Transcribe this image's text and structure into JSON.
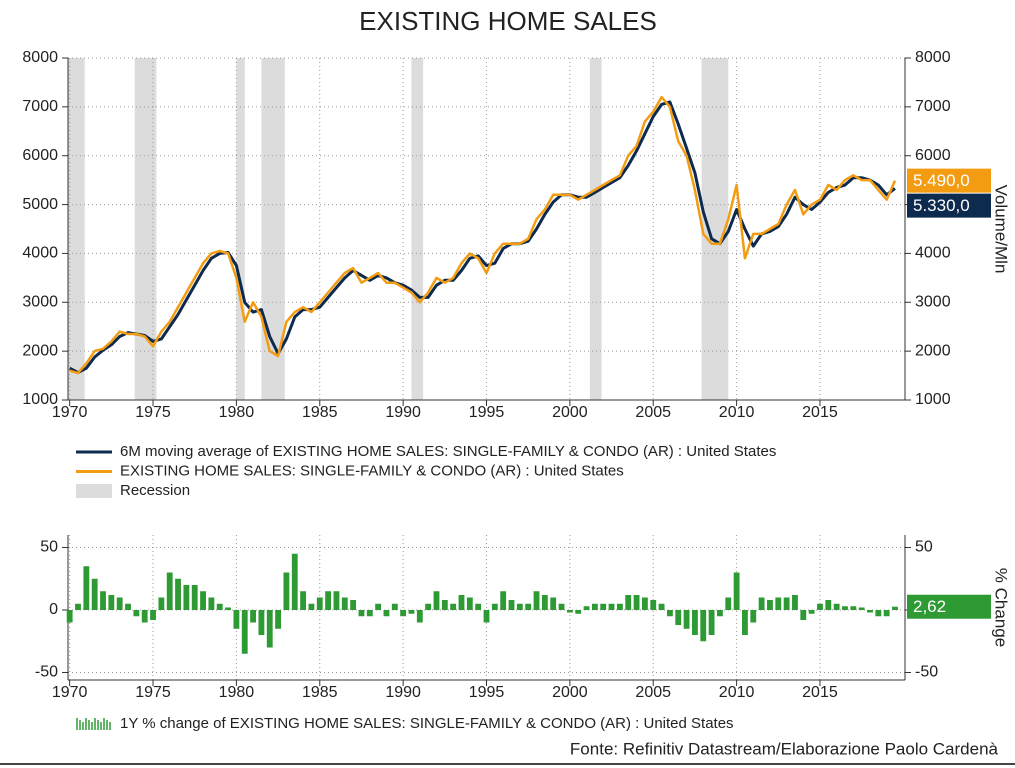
{
  "title": "EXISTING HOME SALES",
  "source": "Fonte: Refinitiv Datastream/Elaborazione Paolo Cardenà",
  "chart_data": [
    {
      "type": "line",
      "x": [
        1970,
        1970.5,
        1971,
        1971.5,
        1972,
        1972.5,
        1973,
        1973.5,
        1974,
        1974.5,
        1975,
        1975.5,
        1976,
        1976.5,
        1977,
        1977.5,
        1978,
        1978.5,
        1979,
        1979.5,
        1980,
        1980.5,
        1981,
        1981.5,
        1982,
        1982.5,
        1983,
        1983.5,
        1984,
        1984.5,
        1985,
        1985.5,
        1986,
        1986.5,
        1987,
        1987.5,
        1988,
        1988.5,
        1989,
        1989.5,
        1990,
        1990.5,
        1991,
        1991.5,
        1992,
        1992.5,
        1993,
        1993.5,
        1994,
        1994.5,
        1995,
        1995.5,
        1996,
        1996.5,
        1997,
        1997.5,
        1998,
        1998.5,
        1999,
        1999.5,
        2000,
        2000.5,
        2001,
        2001.5,
        2002,
        2002.5,
        2003,
        2003.5,
        2004,
        2004.5,
        2005,
        2005.5,
        2006,
        2006.5,
        2007,
        2007.5,
        2008,
        2008.5,
        2009,
        2009.5,
        2010,
        2010.5,
        2011,
        2011.5,
        2012,
        2012.5,
        2013,
        2013.5,
        2014,
        2014.5,
        2015,
        2015.5,
        2016,
        2016.5,
        2017,
        2017.5,
        2018,
        2018.5,
        2019,
        2019.5
      ],
      "series": [
        {
          "name": "6M moving average of EXISTING HOME SALES: SINGLE-FAMILY & CONDO (AR) : United States",
          "color": "#0d2a4f",
          "end_label": "5.330,0",
          "values": [
            1650,
            1560,
            1650,
            1880,
            2020,
            2130,
            2300,
            2380,
            2350,
            2320,
            2200,
            2250,
            2500,
            2750,
            3050,
            3350,
            3650,
            3900,
            4000,
            4020,
            3750,
            3000,
            2800,
            2850,
            2300,
            1950,
            2250,
            2700,
            2850,
            2850,
            2900,
            3100,
            3300,
            3500,
            3650,
            3550,
            3450,
            3550,
            3500,
            3400,
            3350,
            3250,
            3100,
            3100,
            3350,
            3450,
            3450,
            3650,
            3900,
            3950,
            3750,
            3800,
            4100,
            4200,
            4200,
            4250,
            4500,
            4800,
            5050,
            5200,
            5200,
            5150,
            5150,
            5250,
            5350,
            5450,
            5550,
            5800,
            6100,
            6450,
            6800,
            7050,
            7100,
            6650,
            6150,
            5650,
            4850,
            4300,
            4200,
            4450,
            4900,
            4500,
            4150,
            4400,
            4450,
            4550,
            4800,
            5150,
            5000,
            4900,
            5050,
            5250,
            5350,
            5400,
            5550,
            5550,
            5500,
            5400,
            5200,
            5330
          ]
        },
        {
          "name": "EXISTING HOME SALES: SINGLE-FAMILY & CONDO (AR) : United States",
          "color": "#f39c12",
          "end_label": "5.490,0",
          "values": [
            1600,
            1550,
            1750,
            2000,
            2050,
            2200,
            2400,
            2350,
            2350,
            2300,
            2100,
            2400,
            2600,
            2900,
            3200,
            3500,
            3800,
            4000,
            4050,
            4000,
            3500,
            2600,
            3000,
            2700,
            2000,
            1900,
            2600,
            2800,
            2900,
            2800,
            3000,
            3200,
            3400,
            3600,
            3700,
            3400,
            3500,
            3600,
            3400,
            3400,
            3300,
            3200,
            3000,
            3200,
            3500,
            3400,
            3500,
            3800,
            4000,
            3900,
            3600,
            4000,
            4200,
            4200,
            4200,
            4300,
            4700,
            4900,
            5200,
            5200,
            5200,
            5100,
            5200,
            5300,
            5400,
            5500,
            5600,
            6000,
            6200,
            6700,
            6900,
            7200,
            7000,
            6300,
            6000,
            5300,
            4400,
            4200,
            4200,
            4700,
            5400,
            3900,
            4400,
            4400,
            4500,
            4600,
            5000,
            5300,
            4800,
            5000,
            5100,
            5400,
            5300,
            5500,
            5600,
            5500,
            5500,
            5300,
            5100,
            5490
          ]
        }
      ],
      "recessions": [
        [
          1969.9,
          1970.9
        ],
        [
          1973.9,
          1975.2
        ],
        [
          1980.0,
          1980.5
        ],
        [
          1981.5,
          1982.9
        ],
        [
          1990.5,
          1991.2
        ],
        [
          2001.2,
          2001.9
        ],
        [
          2007.9,
          2009.5
        ]
      ],
      "recession_label": "Recession",
      "recession_color": "#dcdcdc",
      "xlim": [
        1969.9,
        2020.1
      ],
      "xticks": [
        1970,
        1975,
        1980,
        1985,
        1990,
        1995,
        2000,
        2005,
        2010,
        2015
      ],
      "ylim": [
        1000,
        8000
      ],
      "yticks": [
        1000,
        2000,
        3000,
        4000,
        5000,
        6000,
        7000,
        8000
      ],
      "y2lim": [
        1000,
        8000
      ],
      "y2ticks": [
        1000,
        2000,
        3000,
        4000,
        5000,
        6000,
        7000,
        8000
      ],
      "y2label": "Volume/Mln",
      "grid": true
    },
    {
      "type": "bar",
      "x": [
        1970,
        1970.5,
        1971,
        1971.5,
        1972,
        1972.5,
        1973,
        1973.5,
        1974,
        1974.5,
        1975,
        1975.5,
        1976,
        1976.5,
        1977,
        1977.5,
        1978,
        1978.5,
        1979,
        1979.5,
        1980,
        1980.5,
        1981,
        1981.5,
        1982,
        1982.5,
        1983,
        1983.5,
        1984,
        1984.5,
        1985,
        1985.5,
        1986,
        1986.5,
        1987,
        1987.5,
        1988,
        1988.5,
        1989,
        1989.5,
        1990,
        1990.5,
        1991,
        1991.5,
        1992,
        1992.5,
        1993,
        1993.5,
        1994,
        1994.5,
        1995,
        1995.5,
        1996,
        1996.5,
        1997,
        1997.5,
        1998,
        1998.5,
        1999,
        1999.5,
        2000,
        2000.5,
        2001,
        2001.5,
        2002,
        2002.5,
        2003,
        2003.5,
        2004,
        2004.5,
        2005,
        2005.5,
        2006,
        2006.5,
        2007,
        2007.5,
        2008,
        2008.5,
        2009,
        2009.5,
        2010,
        2010.5,
        2011,
        2011.5,
        2012,
        2012.5,
        2013,
        2013.5,
        2014,
        2014.5,
        2015,
        2015.5,
        2016,
        2016.5,
        2017,
        2017.5,
        2018,
        2018.5,
        2019,
        2019.5
      ],
      "series": [
        {
          "name": "1Y % change of EXISTING HOME SALES: SINGLE-FAMILY & CONDO (AR) : United States",
          "color": "#2e9a34",
          "end_label": "2,62",
          "values": [
            -10,
            5,
            35,
            25,
            15,
            12,
            10,
            5,
            -5,
            -10,
            -8,
            10,
            30,
            25,
            20,
            20,
            15,
            10,
            5,
            2,
            -15,
            -35,
            -10,
            -20,
            -30,
            -15,
            30,
            45,
            15,
            5,
            10,
            15,
            15,
            10,
            8,
            -5,
            -5,
            5,
            -5,
            5,
            -5,
            -3,
            -10,
            5,
            15,
            8,
            5,
            12,
            10,
            5,
            -10,
            5,
            15,
            8,
            5,
            5,
            15,
            12,
            10,
            5,
            -2,
            -3,
            3,
            5,
            5,
            5,
            5,
            12,
            12,
            10,
            8,
            5,
            -5,
            -12,
            -15,
            -20,
            -25,
            -20,
            -5,
            10,
            30,
            -20,
            -10,
            10,
            8,
            10,
            10,
            12,
            -8,
            -3,
            5,
            8,
            5,
            3,
            3,
            2,
            -2,
            -5,
            -5,
            2.62
          ]
        }
      ],
      "xlim": [
        1969.9,
        2020.1
      ],
      "xticks": [
        1970,
        1975,
        1980,
        1985,
        1990,
        1995,
        2000,
        2005,
        2010,
        2015
      ],
      "ylim": [
        -56,
        60
      ],
      "yticks": [
        -50,
        0,
        50
      ],
      "y2lim": [
        -56,
        60
      ],
      "y2ticks": [
        -50,
        0,
        50
      ],
      "y2label": "% Change",
      "grid": true
    }
  ]
}
